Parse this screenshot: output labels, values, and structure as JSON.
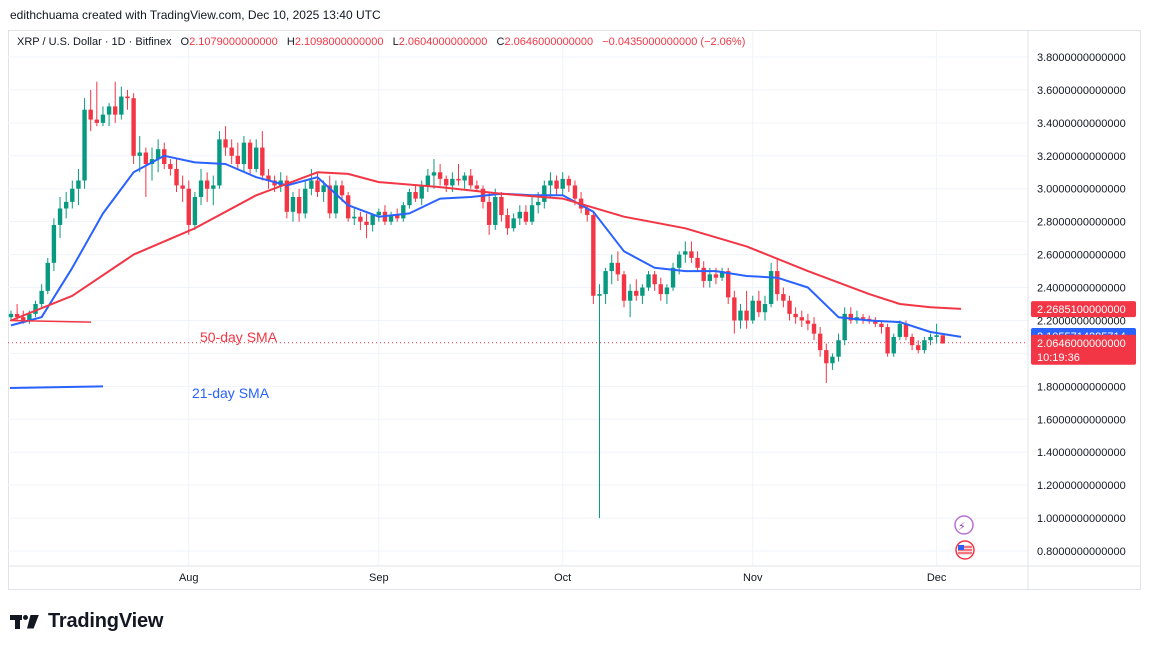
{
  "header": {
    "credit": "edithchuama created with TradingView.com, Dec 10, 2025 13:40 UTC"
  },
  "legend": {
    "symbol": "XRP / U.S. Dollar · 1D · Bitfinex",
    "open_label": "O",
    "open": "2.1079000000000",
    "high_label": "H",
    "high": "2.1098000000000",
    "low_label": "L",
    "low": "2.0604000000000",
    "close_label": "C",
    "close": "2.0646000000000",
    "change": "−0.0435000000000 (−2.06%)"
  },
  "badges": {
    "sma50": "2.2685100000000",
    "sma21": "2.1055714285714",
    "last": "2.0646000000000",
    "countdown": "10:19:36"
  },
  "footer": {
    "brand": "TradingView"
  },
  "colors": {
    "up": "#089981",
    "down": "#f23645",
    "sma21": "#2962ff",
    "sma50": "#f23645"
  },
  "chart_data": {
    "type": "candlestick",
    "y_axis": {
      "min": 0.8,
      "max": 3.8,
      "step": 0.2,
      "position": "right",
      "tick_labels": [
        "3.8000000000000",
        "3.6000000000000",
        "3.4000000000000",
        "3.2000000000000",
        "3.0000000000000",
        "2.8000000000000",
        "2.6000000000000",
        "2.4000000000000",
        "2.2000000000000",
        "2.0000000000000",
        "1.8000000000000",
        "1.6000000000000",
        "1.4000000000000",
        "1.2000000000000",
        "1.0000000000000",
        "0.8000000000000"
      ]
    },
    "x_axis": {
      "ticks": [
        {
          "label": "Aug",
          "index": 29
        },
        {
          "label": "Sep",
          "index": 60
        },
        {
          "label": "Oct",
          "index": 90
        },
        {
          "label": "Nov",
          "index": 121
        },
        {
          "label": "Dec",
          "index": 151
        }
      ]
    },
    "annotations": [
      {
        "text": "50-day SMA",
        "color": "#f23645"
      },
      {
        "text": "21-day SMA",
        "color": "#2962ff"
      }
    ],
    "current_price_line": 2.0646,
    "candles": [
      [
        2.22,
        2.26,
        2.2,
        2.24
      ],
      [
        2.24,
        2.3,
        2.2,
        2.22
      ],
      [
        2.22,
        2.26,
        2.18,
        2.2
      ],
      [
        2.2,
        2.26,
        2.18,
        2.24
      ],
      [
        2.24,
        2.32,
        2.22,
        2.3
      ],
      [
        2.3,
        2.42,
        2.28,
        2.38
      ],
      [
        2.38,
        2.58,
        2.36,
        2.55
      ],
      [
        2.55,
        2.82,
        2.5,
        2.78
      ],
      [
        2.78,
        2.95,
        2.7,
        2.88
      ],
      [
        2.88,
        2.98,
        2.82,
        2.92
      ],
      [
        2.92,
        3.05,
        2.88,
        3.0
      ],
      [
        3.0,
        3.12,
        2.9,
        3.05
      ],
      [
        3.05,
        3.55,
        3.0,
        3.48
      ],
      [
        3.48,
        3.6,
        3.35,
        3.42
      ],
      [
        3.42,
        3.65,
        3.38,
        3.4
      ],
      [
        3.4,
        3.5,
        3.38,
        3.45
      ],
      [
        3.45,
        3.52,
        3.38,
        3.5
      ],
      [
        3.5,
        3.65,
        3.4,
        3.45
      ],
      [
        3.45,
        3.62,
        3.42,
        3.56
      ],
      [
        3.56,
        3.6,
        3.48,
        3.55
      ],
      [
        3.55,
        3.58,
        3.15,
        3.2
      ],
      [
        3.2,
        3.32,
        3.1,
        3.22
      ],
      [
        3.22,
        3.25,
        2.95,
        3.15
      ],
      [
        3.15,
        3.25,
        3.05,
        3.18
      ],
      [
        3.18,
        3.3,
        3.1,
        3.24
      ],
      [
        3.24,
        3.28,
        3.12,
        3.15
      ],
      [
        3.15,
        3.18,
        3.08,
        3.12
      ],
      [
        3.12,
        3.18,
        2.98,
        3.02
      ],
      [
        3.02,
        3.08,
        2.92,
        3.0
      ],
      [
        3.0,
        3.05,
        2.72,
        2.78
      ],
      [
        2.78,
        2.98,
        2.75,
        2.95
      ],
      [
        2.95,
        3.12,
        2.9,
        3.05
      ],
      [
        3.05,
        3.1,
        2.92,
        3.0
      ],
      [
        3.0,
        3.08,
        2.9,
        3.02
      ],
      [
        3.02,
        3.35,
        3.0,
        3.3
      ],
      [
        3.3,
        3.38,
        3.2,
        3.25
      ],
      [
        3.25,
        3.3,
        3.15,
        3.2
      ],
      [
        3.2,
        3.28,
        3.12,
        3.15
      ],
      [
        3.15,
        3.32,
        3.1,
        3.28
      ],
      [
        3.28,
        3.3,
        3.08,
        3.12
      ],
      [
        3.12,
        3.3,
        3.1,
        3.25
      ],
      [
        3.25,
        3.35,
        3.05,
        3.08
      ],
      [
        3.08,
        3.12,
        3.0,
        3.05
      ],
      [
        3.05,
        3.08,
        2.98,
        3.02
      ],
      [
        3.02,
        3.1,
        2.98,
        3.05
      ],
      [
        3.05,
        3.08,
        2.82,
        2.86
      ],
      [
        2.86,
        2.98,
        2.8,
        2.95
      ],
      [
        2.95,
        3.0,
        2.8,
        2.85
      ],
      [
        2.85,
        3.05,
        2.82,
        3.0
      ],
      [
        3.0,
        3.12,
        2.96,
        3.05
      ],
      [
        3.05,
        3.1,
        2.95,
        2.98
      ],
      [
        2.98,
        3.05,
        2.92,
        3.02
      ],
      [
        3.02,
        3.08,
        2.82,
        2.85
      ],
      [
        2.85,
        3.05,
        2.82,
        3.02
      ],
      [
        3.02,
        3.05,
        2.92,
        2.96
      ],
      [
        2.96,
        2.98,
        2.8,
        2.82
      ],
      [
        2.82,
        2.88,
        2.78,
        2.83
      ],
      [
        2.83,
        2.86,
        2.75,
        2.8
      ],
      [
        2.8,
        2.85,
        2.7,
        2.78
      ],
      [
        2.78,
        2.85,
        2.74,
        2.84
      ],
      [
        2.84,
        2.88,
        2.8,
        2.86
      ],
      [
        2.86,
        2.9,
        2.78,
        2.8
      ],
      [
        2.8,
        2.86,
        2.78,
        2.84
      ],
      [
        2.84,
        2.88,
        2.8,
        2.82
      ],
      [
        2.82,
        2.92,
        2.8,
        2.9
      ],
      [
        2.9,
        3.0,
        2.88,
        2.98
      ],
      [
        2.98,
        3.02,
        2.92,
        2.94
      ],
      [
        2.94,
        3.05,
        2.9,
        3.02
      ],
      [
        3.02,
        3.12,
        2.98,
        3.08
      ],
      [
        3.08,
        3.18,
        3.0,
        3.1
      ],
      [
        3.1,
        3.15,
        3.02,
        3.06
      ],
      [
        3.06,
        3.08,
        2.98,
        3.02
      ],
      [
        3.02,
        3.1,
        2.98,
        3.06
      ],
      [
        3.06,
        3.15,
        3.02,
        3.05
      ],
      [
        3.05,
        3.1,
        3.0,
        3.08
      ],
      [
        3.08,
        3.12,
        3.0,
        3.02
      ],
      [
        3.02,
        3.05,
        2.98,
        3.0
      ],
      [
        3.0,
        3.02,
        2.88,
        2.92
      ],
      [
        2.92,
        2.98,
        2.72,
        2.78
      ],
      [
        2.78,
        3.0,
        2.75,
        2.95
      ],
      [
        2.95,
        2.98,
        2.8,
        2.84
      ],
      [
        2.84,
        2.88,
        2.72,
        2.76
      ],
      [
        2.76,
        2.85,
        2.74,
        2.82
      ],
      [
        2.82,
        2.9,
        2.78,
        2.86
      ],
      [
        2.86,
        2.9,
        2.78,
        2.8
      ],
      [
        2.8,
        2.95,
        2.78,
        2.9
      ],
      [
        2.9,
        2.98,
        2.85,
        2.92
      ],
      [
        2.92,
        3.05,
        2.88,
        3.02
      ],
      [
        3.02,
        3.1,
        2.95,
        3.05
      ],
      [
        3.05,
        3.08,
        2.96,
        3.0
      ],
      [
        3.0,
        3.1,
        2.96,
        3.06
      ],
      [
        3.06,
        3.08,
        2.98,
        3.02
      ],
      [
        3.02,
        3.05,
        2.9,
        2.94
      ],
      [
        2.94,
        2.98,
        2.85,
        2.88
      ],
      [
        2.88,
        2.9,
        2.8,
        2.84
      ],
      [
        2.84,
        2.86,
        2.3,
        2.35
      ],
      [
        2.35,
        2.42,
        1.0,
        2.36
      ],
      [
        2.36,
        2.52,
        2.3,
        2.5
      ],
      [
        2.5,
        2.6,
        2.42,
        2.55
      ],
      [
        2.55,
        2.62,
        2.44,
        2.48
      ],
      [
        2.48,
        2.5,
        2.28,
        2.32
      ],
      [
        2.32,
        2.42,
        2.22,
        2.38
      ],
      [
        2.38,
        2.45,
        2.32,
        2.35
      ],
      [
        2.35,
        2.42,
        2.3,
        2.4
      ],
      [
        2.4,
        2.5,
        2.38,
        2.48
      ],
      [
        2.48,
        2.5,
        2.38,
        2.42
      ],
      [
        2.42,
        2.46,
        2.32,
        2.36
      ],
      [
        2.36,
        2.42,
        2.3,
        2.4
      ],
      [
        2.4,
        2.55,
        2.38,
        2.52
      ],
      [
        2.52,
        2.62,
        2.48,
        2.6
      ],
      [
        2.6,
        2.68,
        2.55,
        2.62
      ],
      [
        2.62,
        2.68,
        2.55,
        2.58
      ],
      [
        2.58,
        2.62,
        2.5,
        2.52
      ],
      [
        2.52,
        2.56,
        2.4,
        2.44
      ],
      [
        2.44,
        2.52,
        2.4,
        2.48
      ],
      [
        2.48,
        2.52,
        2.42,
        2.46
      ],
      [
        2.46,
        2.52,
        2.44,
        2.5
      ],
      [
        2.5,
        2.52,
        2.3,
        2.34
      ],
      [
        2.34,
        2.38,
        2.12,
        2.2
      ],
      [
        2.2,
        2.3,
        2.15,
        2.26
      ],
      [
        2.26,
        2.38,
        2.15,
        2.2
      ],
      [
        2.2,
        2.35,
        2.18,
        2.32
      ],
      [
        2.32,
        2.38,
        2.22,
        2.25
      ],
      [
        2.25,
        2.35,
        2.2,
        2.3
      ],
      [
        2.3,
        2.55,
        2.28,
        2.5
      ],
      [
        2.5,
        2.58,
        2.32,
        2.36
      ],
      [
        2.36,
        2.4,
        2.28,
        2.32
      ],
      [
        2.32,
        2.35,
        2.2,
        2.24
      ],
      [
        2.24,
        2.28,
        2.18,
        2.22
      ],
      [
        2.22,
        2.26,
        2.16,
        2.2
      ],
      [
        2.2,
        2.24,
        2.14,
        2.18
      ],
      [
        2.18,
        2.22,
        2.08,
        2.12
      ],
      [
        2.12,
        2.16,
        1.98,
        2.02
      ],
      [
        2.02,
        2.06,
        1.82,
        1.94
      ],
      [
        1.94,
        2.0,
        1.9,
        1.98
      ],
      [
        1.98,
        2.12,
        1.95,
        2.08
      ],
      [
        2.08,
        2.28,
        2.05,
        2.24
      ],
      [
        2.24,
        2.28,
        2.18,
        2.2
      ],
      [
        2.2,
        2.26,
        2.18,
        2.22
      ],
      [
        2.22,
        2.24,
        2.18,
        2.21
      ],
      [
        2.21,
        2.23,
        2.18,
        2.2
      ],
      [
        2.2,
        2.22,
        2.16,
        2.18
      ],
      [
        2.18,
        2.2,
        2.12,
        2.16
      ],
      [
        2.16,
        2.18,
        1.98,
        2.0
      ],
      [
        2.0,
        2.12,
        1.98,
        2.1
      ],
      [
        2.1,
        2.2,
        2.08,
        2.18
      ],
      [
        2.18,
        2.2,
        2.08,
        2.1
      ],
      [
        2.1,
        2.12,
        2.02,
        2.05
      ],
      [
        2.05,
        2.08,
        2.0,
        2.02
      ],
      [
        2.02,
        2.1,
        2.0,
        2.08
      ],
      [
        2.08,
        2.12,
        2.05,
        2.1
      ],
      [
        2.1,
        2.18,
        2.06,
        2.11
      ],
      [
        2.11,
        2.11,
        2.06,
        2.06
      ]
    ],
    "series": [
      {
        "name": "21-day SMA",
        "color": "#2962ff",
        "x": [
          0,
          5,
          10,
          15,
          20,
          25,
          30,
          35,
          40,
          45,
          50,
          55,
          60,
          65,
          70,
          75,
          80,
          85,
          90,
          95,
          100,
          105,
          110,
          115,
          120,
          125,
          130,
          135,
          140,
          145,
          150,
          155
        ],
        "values": [
          2.17,
          2.22,
          2.52,
          2.85,
          3.1,
          3.2,
          3.16,
          3.15,
          3.07,
          3.02,
          3.07,
          2.9,
          2.83,
          2.85,
          2.94,
          2.95,
          2.97,
          2.96,
          2.96,
          2.86,
          2.62,
          2.52,
          2.5,
          2.5,
          2.47,
          2.46,
          2.4,
          2.22,
          2.2,
          2.19,
          2.13,
          2.1
        ]
      },
      {
        "name": "50-day SMA",
        "color": "#f23645",
        "x": [
          0,
          10,
          20,
          30,
          40,
          50,
          55,
          60,
          70,
          80,
          90,
          100,
          110,
          120,
          130,
          140,
          145,
          150,
          155
        ],
        "values": [
          2.2,
          2.35,
          2.6,
          2.76,
          2.96,
          3.1,
          3.09,
          3.04,
          3.01,
          2.97,
          2.94,
          2.83,
          2.76,
          2.65,
          2.5,
          2.36,
          2.3,
          2.28,
          2.27
        ]
      }
    ]
  }
}
